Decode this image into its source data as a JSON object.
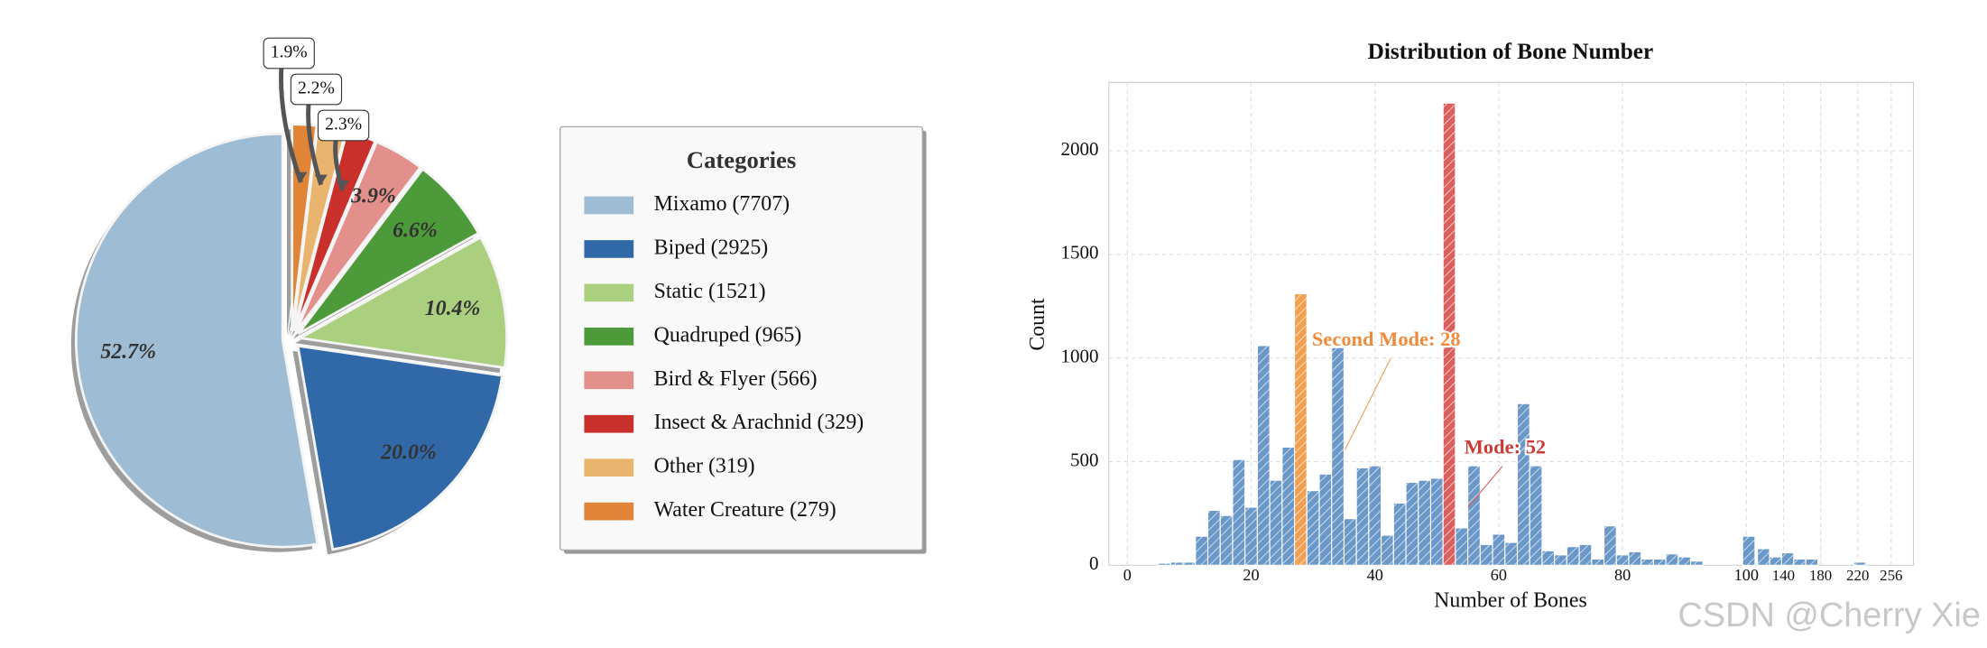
{
  "chart_data": [
    {
      "type": "pie",
      "legend_title": "Categories",
      "categories": [
        "Mixamo (7707)",
        "Biped (2925)",
        "Static (1521)",
        "Quadruped (965)",
        "Bird & Flyer (566)",
        "Insect & Arachnid (329)",
        "Other (319)",
        "Water Creature (279)"
      ],
      "values": [
        52.7,
        20.0,
        10.4,
        6.6,
        3.9,
        2.3,
        2.2,
        1.9
      ],
      "value_labels": [
        "52.7%",
        "20.0%",
        "10.4%",
        "6.6%",
        "3.9%",
        "2.3%",
        "2.2%",
        "1.9%"
      ],
      "colors": [
        "#9ebcd4",
        "#3169a8",
        "#aad07f",
        "#4d9a3a",
        "#e38f8c",
        "#c9302c",
        "#e9b56e",
        "#e08537"
      ],
      "legend": "right"
    },
    {
      "type": "histogram",
      "title": "Distribution of Bone Number",
      "x_label": "Number of Bones",
      "y_label": "Count",
      "bins": [
        1,
        3,
        5,
        7,
        9,
        11,
        13,
        15,
        17,
        19,
        21,
        23,
        25,
        27,
        29,
        31,
        33,
        35,
        37,
        39,
        41,
        43,
        45,
        47,
        49,
        51,
        53,
        55,
        57,
        59,
        61,
        63,
        65,
        67,
        69,
        71,
        73,
        75,
        77,
        79,
        81,
        83,
        85,
        87,
        89,
        91,
        93,
        95,
        97,
        99,
        112,
        125,
        138,
        151,
        164,
        177,
        190,
        203,
        216,
        229,
        242,
        255
      ],
      "counts": [
        0,
        0,
        10,
        15,
        15,
        140,
        265,
        240,
        510,
        280,
        1060,
        410,
        570,
        1310,
        360,
        440,
        1050,
        225,
        470,
        480,
        145,
        300,
        400,
        410,
        420,
        2230,
        180,
        480,
        100,
        150,
        110,
        780,
        480,
        70,
        50,
        90,
        100,
        30,
        190,
        50,
        65,
        30,
        30,
        55,
        40,
        20,
        0,
        0,
        0,
        140,
        80,
        40,
        60,
        30,
        30,
        0,
        0,
        0,
        15,
        0,
        0
      ],
      "color": "#6a98c8",
      "xlim": [
        -3,
        280
      ],
      "x_compress_above": 100,
      "x_compress_factor": 0.15,
      "xticks": [
        0,
        20,
        40,
        60,
        80,
        100,
        140,
        180,
        220,
        256
      ],
      "ylim": [
        0,
        2330
      ],
      "yticks": [
        0,
        500,
        1000,
        1500,
        2000
      ],
      "grid": true,
      "annotations": [
        {
          "text": "Second Mode: 28",
          "x": 28,
          "color": "#f0a050",
          "text_color": "#ef8a3a"
        },
        {
          "text": "Mode: 52",
          "x": 52,
          "color": "#d9605e",
          "text_color": "#cc3a36"
        }
      ]
    }
  ],
  "watermark": "CSDN @Cherry Xie"
}
